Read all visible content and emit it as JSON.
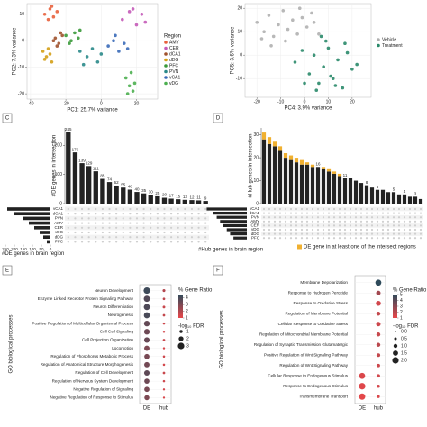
{
  "chart_data": [
    {
      "type": "scatter",
      "xlabel": "PC1: 25.7% variance",
      "ylabel": "PC2: 7.3% variance",
      "xlim": [
        -42,
        32
      ],
      "xticks": [
        -40,
        -20,
        0,
        20
      ],
      "ylim": [
        -22,
        14
      ],
      "yticks": [
        -20,
        -10,
        0,
        10
      ],
      "legend_title": "Region",
      "grid": true,
      "series": [
        {
          "name": "AMY",
          "color": "#e8603c",
          "x": [
            -32,
            -29,
            -27,
            -30,
            -25,
            -28
          ],
          "y": [
            10,
            12,
            9,
            8,
            11,
            13
          ]
        },
        {
          "name": "CER",
          "color": "#c45bb8",
          "x": [
            12,
            16,
            20,
            23,
            18,
            25
          ],
          "y": [
            8,
            11,
            6,
            10,
            12,
            7
          ]
        },
        {
          "name": "dCA1",
          "color": "#a0522d",
          "x": [
            -26,
            -24,
            -22,
            -27,
            -23,
            -25
          ],
          "y": [
            1,
            -1,
            2,
            0,
            3,
            -2
          ]
        },
        {
          "name": "dDG",
          "color": "#d4a017",
          "x": [
            -33,
            -31,
            -29,
            -30,
            -32,
            -28
          ],
          "y": [
            -4,
            -6,
            -5,
            -3,
            -7,
            -8
          ]
        },
        {
          "name": "PFC",
          "color": "#3a9a3a",
          "x": [
            -20,
            -17,
            -15,
            -13,
            -18,
            -12
          ],
          "y": [
            2,
            0,
            3,
            1,
            -1,
            4
          ]
        },
        {
          "name": "PVN",
          "color": "#2a8a8a",
          "x": [
            -12,
            -8,
            -5,
            -2,
            -10,
            0
          ],
          "y": [
            -4,
            -6,
            -3,
            -8,
            -9,
            -5
          ]
        },
        {
          "name": "vCA1",
          "color": "#3a6ab8",
          "x": [
            4,
            7,
            10,
            13,
            8,
            15
          ],
          "y": [
            -2,
            0,
            -4,
            -1,
            2,
            -3
          ]
        },
        {
          "name": "vDG",
          "color": "#4caf50",
          "x": [
            14,
            16,
            18,
            17,
            19,
            15
          ],
          "y": [
            -14,
            -17,
            -19,
            -12,
            -16,
            -20
          ]
        }
      ]
    },
    {
      "type": "scatter",
      "xlabel": "PC4: 3.9% variance",
      "ylabel": "PC5: 3.6% variance",
      "xlim": [
        -25,
        28
      ],
      "xticks": [
        -20,
        -10,
        0,
        10,
        20
      ],
      "ylim": [
        -18,
        22
      ],
      "yticks": [
        -10,
        0,
        10,
        20
      ],
      "grid": true,
      "series": [
        {
          "name": "Vehicle",
          "color": "#b0b0b0",
          "x": [
            -20,
            -17,
            -15,
            -13,
            -11,
            -9,
            -7,
            -5,
            -3,
            -1,
            1,
            3,
            -14,
            -8,
            -2,
            4,
            6,
            -18
          ],
          "y": [
            14,
            10,
            17,
            8,
            13,
            19,
            11,
            15,
            9,
            16,
            12,
            18,
            4,
            6,
            20,
            14,
            9,
            7
          ]
        },
        {
          "name": "Treatment",
          "color": "#2a8a6a",
          "x": [
            -4,
            -1,
            2,
            4,
            6,
            8,
            10,
            12,
            14,
            16,
            18,
            20,
            5,
            9,
            13,
            17,
            22,
            7,
            11,
            0
          ],
          "y": [
            -3,
            2,
            -8,
            0,
            -12,
            -5,
            3,
            -10,
            -2,
            -14,
            1,
            -6,
            -15,
            6,
            -13,
            5,
            -4,
            8,
            -9,
            -12
          ]
        }
      ]
    },
    {
      "type": "upset",
      "label": "C",
      "ylabel": "#DE genes in intersection",
      "ylim": [
        0,
        260
      ],
      "yticks": [
        0,
        100,
        200
      ],
      "values": [
        245,
        176,
        139,
        129,
        111,
        85,
        74,
        62,
        55,
        48,
        40,
        35,
        30,
        25,
        20,
        17,
        15,
        13,
        12,
        11,
        9
      ],
      "color": "#222222",
      "sets": [
        "vCA1",
        "dCA1",
        "PVN",
        "AMY",
        "CER",
        "vDG",
        "dDG",
        "PFC"
      ],
      "set_sizes": [
        240,
        200,
        150,
        120,
        90,
        60,
        40,
        20
      ],
      "set_xlim": [
        0,
        260
      ],
      "set_xticks": [
        250,
        200,
        150,
        100,
        50,
        0
      ],
      "set_label": "#DE genes in brain region"
    },
    {
      "type": "upset",
      "label": "D",
      "ylabel": "#Hub genes in intersection",
      "ylim": [
        0,
        33
      ],
      "yticks": [
        0,
        10,
        20,
        30
      ],
      "series": [
        {
          "color": "#222222",
          "values": [
            28,
            26,
            25,
            23,
            20,
            19,
            18,
            17,
            17,
            16,
            16,
            15,
            14,
            13,
            12,
            11,
            11,
            10,
            9,
            8,
            7,
            6,
            6,
            5,
            5,
            4,
            4,
            3,
            3,
            2
          ]
        },
        {
          "name": "DE gene in at least one of the intersect regions",
          "color": "#f0b030",
          "values": [
            3,
            3,
            2,
            2,
            2,
            2,
            2,
            2,
            1,
            1,
            0,
            1,
            1,
            1,
            1,
            0,
            0,
            0,
            0,
            0,
            0,
            0,
            0,
            0,
            0,
            0,
            0,
            0,
            0,
            0
          ]
        }
      ],
      "value_labels": [
        null,
        null,
        null,
        null,
        null,
        null,
        null,
        null,
        null,
        null,
        "16",
        null,
        null,
        null,
        null,
        "11",
        null,
        null,
        null,
        "8",
        null,
        "6",
        null,
        null,
        "5",
        null,
        "4",
        null,
        "3",
        null
      ],
      "sets": [
        "vCA1",
        "dCA1",
        "PVN",
        "AMY",
        "CER",
        "vDG",
        "dDG",
        "PFC"
      ],
      "set_sizes": [
        60,
        50,
        45,
        40,
        35,
        30,
        25,
        20
      ],
      "set_xlim": [
        0,
        70
      ],
      "set_label": "#Hub genes in brain region"
    },
    {
      "type": "dot",
      "label": "E",
      "ylabel": "GO biological processes",
      "terms": [
        "Neuron Development",
        "Enzyme Linked Receptor Protein Signaling Pathway",
        "Neuron Differentiation",
        "Neurogenesis",
        "Positive Regulation of Multicellular Organismal Process",
        "Cell Cell Signaling",
        "Cell Projection Organization",
        "Locomotion",
        "Regulation of Phosphorus Metabolic Process",
        "Regulation of Anatomical Structure Morphogenesis",
        "Regulation of Cell Development",
        "Regulation of Nervous System Development",
        "Negative Regulation of Signaling",
        "Negative Regulation of Response to Stimulus"
      ],
      "series": [
        {
          "name": "DE",
          "ratio": [
            4.2,
            3.8,
            3.9,
            4.0,
            3.5,
            3.3,
            3.4,
            3.0,
            3.1,
            3.2,
            3.6,
            3.3,
            3.1,
            3.0
          ],
          "fdr": [
            3,
            2.8,
            2.8,
            2.7,
            2.5,
            2.5,
            2.4,
            2.3,
            2.2,
            2.3,
            2.4,
            2.2,
            2.2,
            2.1
          ]
        },
        {
          "name": "hub",
          "ratio": [
            2,
            1.8,
            1.6,
            1.7,
            1.5,
            1.4,
            1.6,
            1.3,
            1.5,
            1.4,
            1.6,
            1.5,
            1.4,
            1.3
          ],
          "fdr": [
            0.8,
            0.6,
            0.7,
            0.6,
            0.5,
            0.5,
            0.6,
            0.4,
            0.5,
            0.5,
            0.6,
            0.5,
            0.4,
            0.4
          ]
        }
      ],
      "ratio_title": "% Gene Ratio",
      "ratio_lim": [
        1,
        4.5
      ],
      "ratio_ticks": [
        1,
        2,
        3,
        4
      ],
      "colors": [
        "#e8474a",
        "#2e4a5a"
      ],
      "fdr_title": "-log₁₀ FDR",
      "fdr_lim": [
        0,
        3
      ],
      "fdr_ticks": [
        1,
        2,
        3
      ]
    },
    {
      "type": "dot",
      "label": "F",
      "ylabel": "GO biological processes",
      "terms": [
        "Membrane Depolarization",
        "Response to Hydrogen Peroxide",
        "Response to Oxidative Stress",
        "Regulation of Membrane Potential",
        "Cellular Response to Oxidative Stress",
        "Regulation of Mitochondrial Membrane Potential",
        "Regulation of Synaptic Transmission Glutamatergic",
        "Positive Regulation of Wnt Signaling Pathway",
        "Regulation of Wnt Signaling Pathway",
        "Cellular Response to Endogenous Stimulus",
        "Response to Endogenous Stimulus",
        "Transmembrane Transport"
      ],
      "series": [
        {
          "name": "DE",
          "ratio": [
            null,
            null,
            null,
            null,
            null,
            null,
            null,
            null,
            null,
            1.3,
            1.2,
            1.1
          ],
          "fdr": [
            null,
            null,
            null,
            null,
            null,
            null,
            null,
            null,
            null,
            1.8,
            2.0,
            1.9
          ]
        },
        {
          "name": "hub",
          "ratio": [
            5,
            2.5,
            1.5,
            1.8,
            1.6,
            1.7,
            2,
            1.8,
            1.6,
            1.5,
            1.4,
            1.3
          ],
          "fdr": [
            1.8,
            1.2,
            1.4,
            1.0,
            1.2,
            1.0,
            1.0,
            0.9,
            0.8,
            0.8,
            0.7,
            0.6
          ]
        }
      ],
      "ratio_title": "% Gene Ratio",
      "ratio_lim": [
        1,
        5
      ],
      "ratio_ticks": [
        1,
        2,
        3,
        4,
        5
      ],
      "colors": [
        "#e8474a",
        "#2e4a5a"
      ],
      "fdr_title": "-log₁₀ FDR",
      "fdr_lim": [
        0,
        2
      ],
      "fdr_ticks": [
        {
          "value": 0,
          "label": "0.0"
        },
        {
          "value": 0.5,
          "label": "0.5"
        },
        {
          "value": 1,
          "label": "1.0"
        },
        {
          "value": 1.5,
          "label": "1.5"
        },
        {
          "value": 2,
          "label": "2.0"
        }
      ]
    }
  ]
}
